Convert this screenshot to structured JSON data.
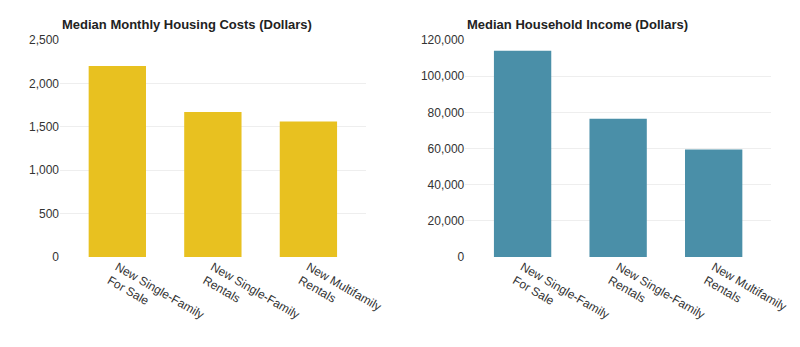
{
  "chart_data": [
    {
      "type": "bar",
      "title": "Median Monthly Housing Costs (Dollars)",
      "categories": [
        "New Single-Family\nFor Sale",
        "New Single-Family\nRentals",
        "New Multifamily\nRentals"
      ],
      "values": [
        2200,
        1670,
        1560
      ],
      "color": "#E8C120",
      "ylim": [
        0,
        2500
      ],
      "yticks": [
        0,
        500,
        {
          "value": 1000,
          "label": "1,000"
        },
        {
          "value": 1500,
          "label": "1,500"
        },
        {
          "value": 2000,
          "label": "2,000"
        },
        {
          "value": 2500,
          "label": "2,500"
        }
      ],
      "grid": true
    },
    {
      "type": "bar",
      "title": "Median Household Income (Dollars)",
      "categories": [
        "New Single-Family\nFor Sale",
        "New Single-Family\nRentals",
        "New Multifamily\nRentals"
      ],
      "values": [
        114000,
        76500,
        59500
      ],
      "color": "#4A8FA8",
      "ylim": [
        0,
        120000
      ],
      "yticks": [
        0,
        {
          "value": 20000,
          "label": "20,000"
        },
        {
          "value": 40000,
          "label": "40,000"
        },
        {
          "value": 60000,
          "label": "60,000"
        },
        {
          "value": 80000,
          "label": "80,000"
        },
        {
          "value": 100000,
          "label": "100,000"
        },
        {
          "value": 120000,
          "label": "120,000"
        }
      ],
      "grid": true
    }
  ]
}
